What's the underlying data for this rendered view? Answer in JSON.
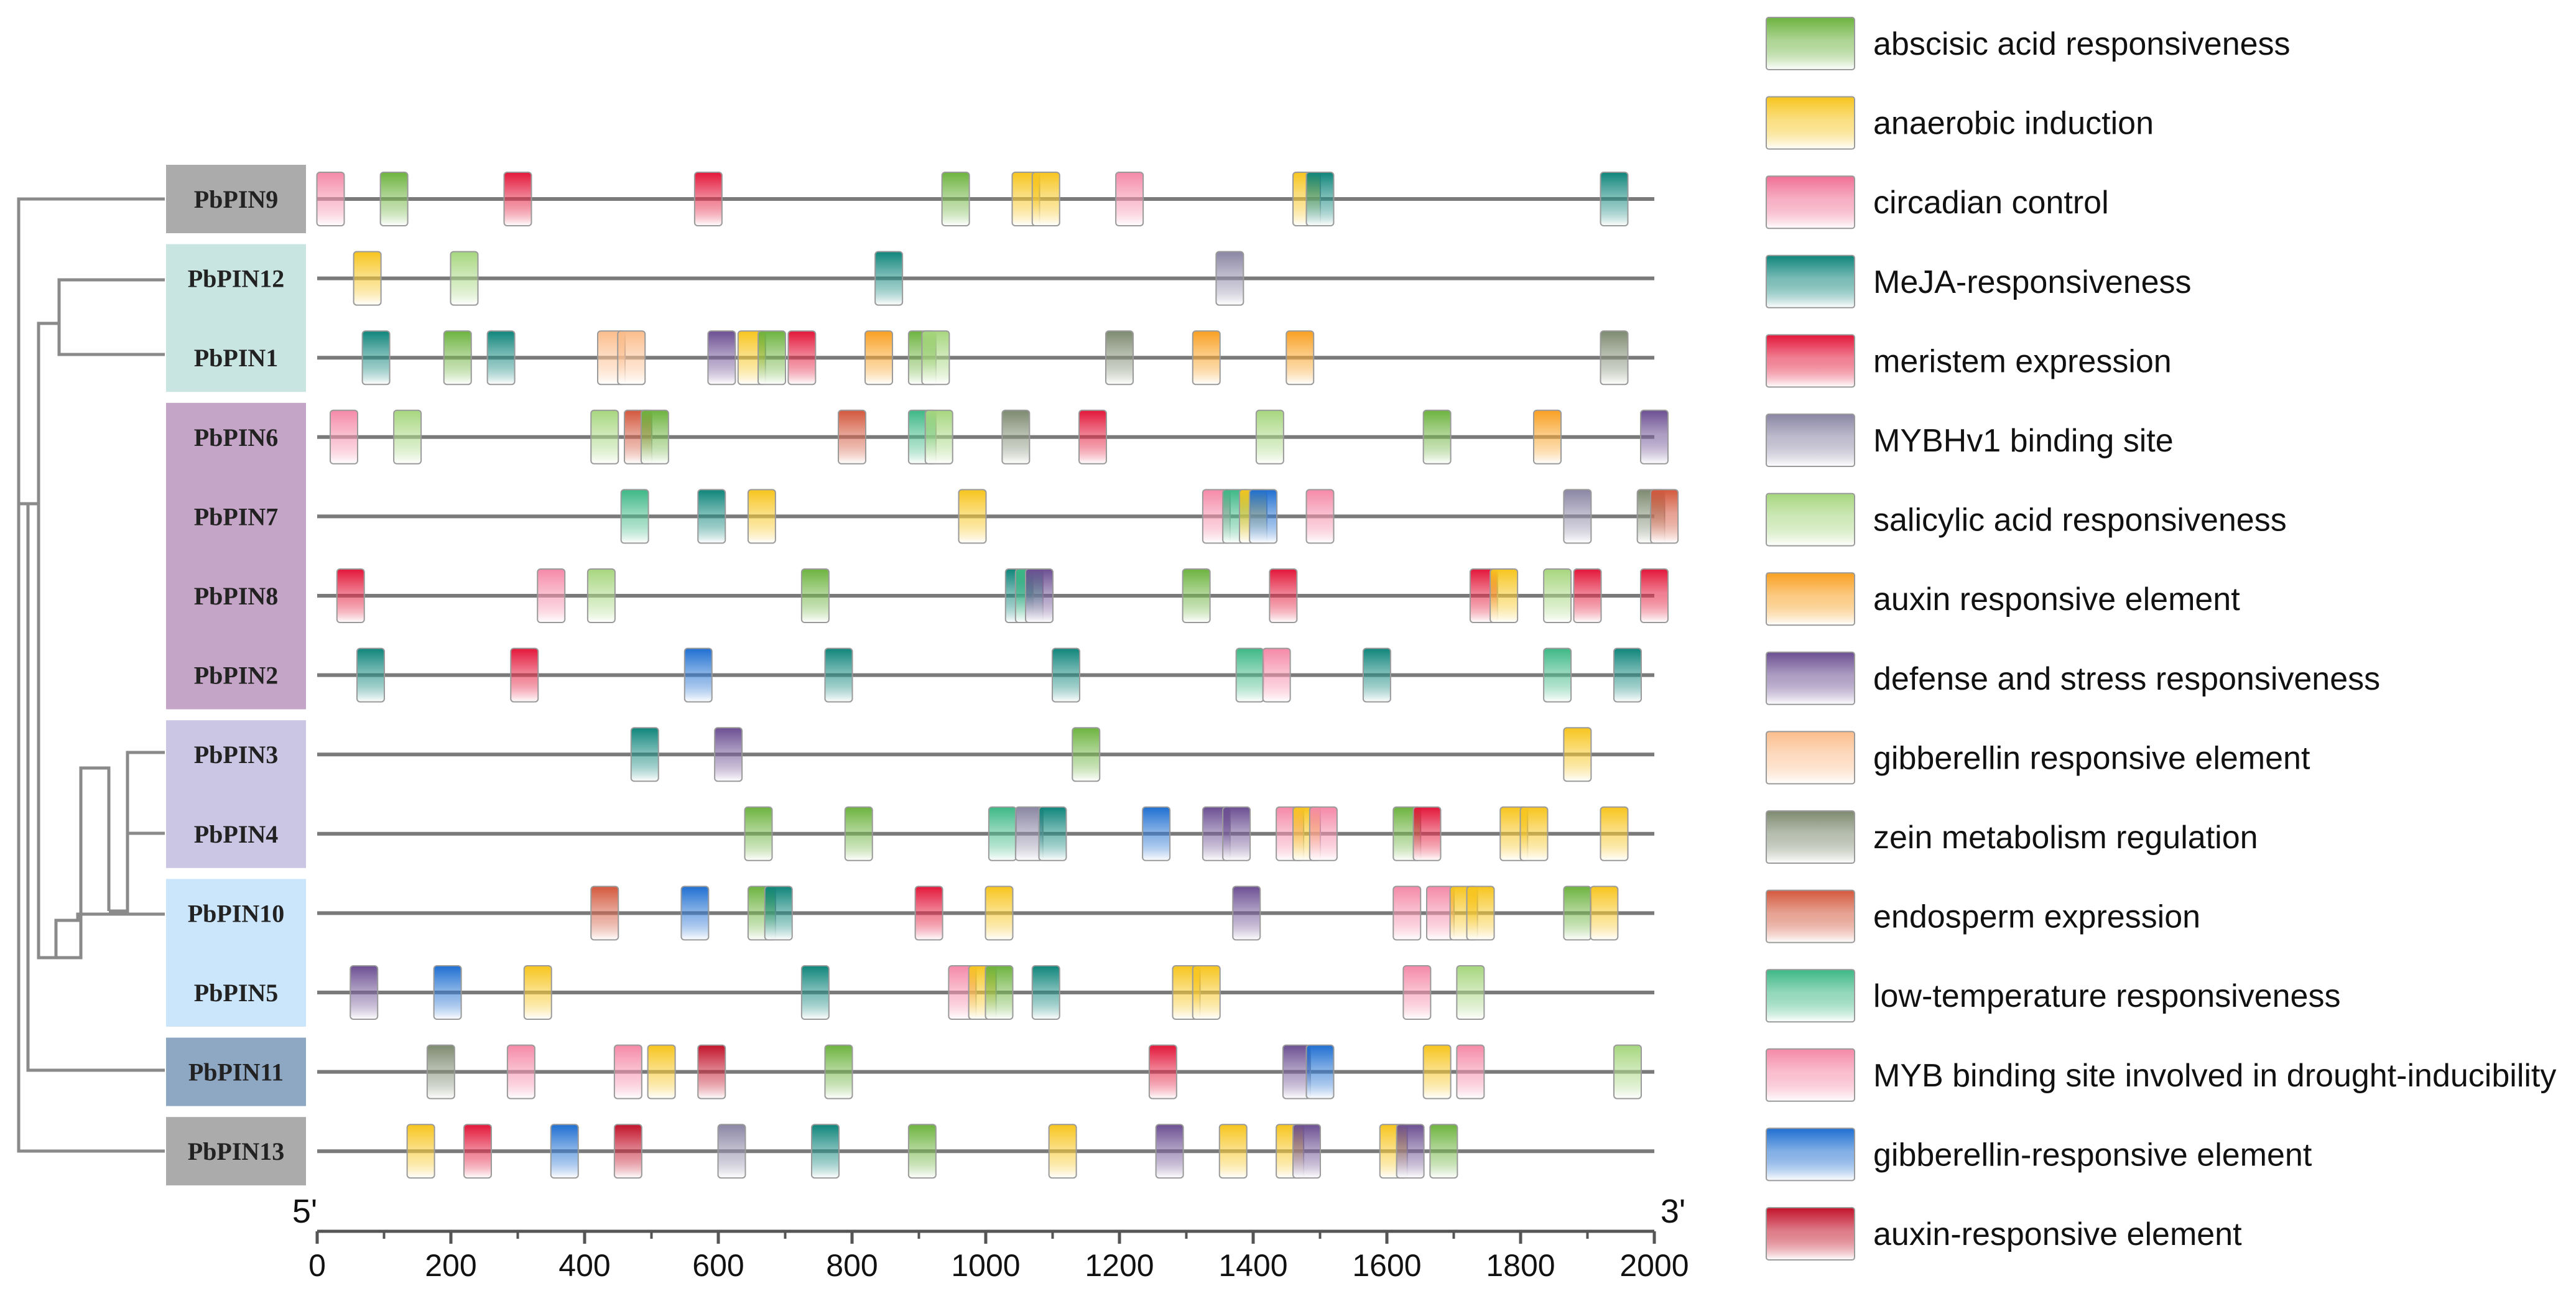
{
  "elements": {
    "abscisic": {
      "label": "abscisic acid responsiveness",
      "color": "#6db33f"
    },
    "anaerobic": {
      "label": "anaerobic induction",
      "color": "#f7c51e"
    },
    "circadian": {
      "label": "circadian control",
      "color": "#f06f95"
    },
    "meja": {
      "label": "MeJA-responsiveness",
      "color": "#0f857b"
    },
    "meristem": {
      "label": "meristem expression",
      "color": "#e3173a"
    },
    "mybhv1": {
      "label": "MYBHv1 binding site",
      "color": "#8a86a4"
    },
    "salicylic": {
      "label": "salicylic acid responsiveness",
      "color": "#a6d67e"
    },
    "auxin": {
      "label": "auxin responsive element",
      "color": "#f9a021"
    },
    "defense": {
      "label": "defense and stress responsiveness",
      "color": "#6c4f92"
    },
    "gibberellin": {
      "label": "gibberellin responsive element",
      "color": "#fcbd8c"
    },
    "zein": {
      "label": "zein metabolism regulation",
      "color": "#7d8a70"
    },
    "endosperm": {
      "label": "endosperm expression",
      "color": "#d3583d"
    },
    "lowtemp": {
      "label": "low-temperature responsiveness",
      "color": "#3db885"
    },
    "myb": {
      "label": "MYB binding site involved in drought-inducibility",
      "color": "#f589a8"
    },
    "gib2": {
      "label": "gibberellin-responsive element",
      "color": "#1f6fd1"
    },
    "auxin2": {
      "label": "auxin-responsive element",
      "color": "#c2132a"
    }
  },
  "legend_order": [
    "abscisic",
    "anaerobic",
    "circadian",
    "meja",
    "meristem",
    "mybhv1",
    "salicylic",
    "auxin",
    "defense",
    "gibberellin",
    "zein",
    "endosperm",
    "lowtemp",
    "myb",
    "gib2",
    "auxin2"
  ],
  "axis": {
    "start_label": "5'",
    "end_label": "3'",
    "min": 0,
    "max": 2000,
    "ticks": [
      0,
      200,
      400,
      600,
      800,
      1000,
      1200,
      1400,
      1600,
      1800,
      2000
    ]
  },
  "groups": [
    {
      "genes": [
        "PbPIN9"
      ],
      "color": "#ababab"
    },
    {
      "genes": [
        "PbPIN12",
        "PbPIN1"
      ],
      "color": "#c8e5e1"
    },
    {
      "genes": [
        "PbPIN6",
        "PbPIN7",
        "PbPIN8",
        "PbPIN2"
      ],
      "color": "#c5a5c7"
    },
    {
      "genes": [
        "PbPIN3",
        "PbPIN4"
      ],
      "color": "#cac6e3"
    },
    {
      "genes": [
        "PbPIN10",
        "PbPIN5"
      ],
      "color": "#cbe5fb"
    },
    {
      "genes": [
        "PbPIN11"
      ],
      "color": "#8ea7c3"
    },
    {
      "genes": [
        "PbPIN13"
      ],
      "color": "#ababab"
    }
  ],
  "chart_data": {
    "type": "promoter-elements",
    "x_range": [
      0,
      2000
    ],
    "genes": [
      {
        "name": "PbPIN9",
        "elements": [
          [
            20,
            "myb"
          ],
          [
            115,
            "abscisic"
          ],
          [
            300,
            "meristem"
          ],
          [
            585,
            "meristem"
          ],
          [
            955,
            "abscisic"
          ],
          [
            1060,
            "anaerobic"
          ],
          [
            1090,
            "anaerobic"
          ],
          [
            1215,
            "myb"
          ],
          [
            1480,
            "anaerobic"
          ],
          [
            1500,
            "meja"
          ],
          [
            1940,
            "meja"
          ]
        ]
      },
      {
        "name": "PbPIN12",
        "elements": [
          [
            75,
            "anaerobic"
          ],
          [
            220,
            "salicylic"
          ],
          [
            855,
            "meja"
          ],
          [
            1365,
            "mybhv1"
          ]
        ]
      },
      {
        "name": "PbPIN1",
        "elements": [
          [
            88,
            "meja"
          ],
          [
            210,
            "abscisic"
          ],
          [
            275,
            "meja"
          ],
          [
            440,
            "gibberellin"
          ],
          [
            470,
            "gibberellin"
          ],
          [
            605,
            "defense"
          ],
          [
            650,
            "anaerobic"
          ],
          [
            680,
            "abscisic"
          ],
          [
            725,
            "meristem"
          ],
          [
            840,
            "auxin"
          ],
          [
            905,
            "abscisic"
          ],
          [
            925,
            "salicylic"
          ],
          [
            1200,
            "zein"
          ],
          [
            1330,
            "auxin"
          ],
          [
            1470,
            "auxin"
          ],
          [
            1940,
            "zein"
          ]
        ]
      },
      {
        "name": "PbPIN6",
        "elements": [
          [
            40,
            "myb"
          ],
          [
            135,
            "salicylic"
          ],
          [
            430,
            "salicylic"
          ],
          [
            480,
            "endosperm"
          ],
          [
            505,
            "abscisic"
          ],
          [
            800,
            "endosperm"
          ],
          [
            905,
            "lowtemp"
          ],
          [
            930,
            "salicylic"
          ],
          [
            1045,
            "zein"
          ],
          [
            1160,
            "meristem"
          ],
          [
            1425,
            "salicylic"
          ],
          [
            1675,
            "abscisic"
          ],
          [
            1840,
            "auxin"
          ],
          [
            2000,
            "defense"
          ]
        ]
      },
      {
        "name": "PbPIN7",
        "elements": [
          [
            475,
            "lowtemp"
          ],
          [
            590,
            "meja"
          ],
          [
            665,
            "anaerobic"
          ],
          [
            980,
            "anaerobic"
          ],
          [
            1345,
            "myb"
          ],
          [
            1375,
            "lowtemp"
          ],
          [
            1400,
            "anaerobic"
          ],
          [
            1415,
            "gib2"
          ],
          [
            1500,
            "myb"
          ],
          [
            1885,
            "mybhv1"
          ],
          [
            1995,
            "zein"
          ],
          [
            2015,
            "endosperm"
          ]
        ]
      },
      {
        "name": "PbPIN8",
        "elements": [
          [
            50,
            "meristem"
          ],
          [
            350,
            "myb"
          ],
          [
            425,
            "salicylic"
          ],
          [
            745,
            "abscisic"
          ],
          [
            1050,
            "meja"
          ],
          [
            1065,
            "lowtemp"
          ],
          [
            1080,
            "defense"
          ],
          [
            1315,
            "abscisic"
          ],
          [
            1445,
            "meristem"
          ],
          [
            1745,
            "meristem"
          ],
          [
            1775,
            "anaerobic"
          ],
          [
            1855,
            "salicylic"
          ],
          [
            1900,
            "meristem"
          ],
          [
            2000,
            "meristem"
          ]
        ]
      },
      {
        "name": "PbPIN2",
        "elements": [
          [
            80,
            "meja"
          ],
          [
            310,
            "meristem"
          ],
          [
            570,
            "gib2"
          ],
          [
            780,
            "meja"
          ],
          [
            1120,
            "meja"
          ],
          [
            1395,
            "lowtemp"
          ],
          [
            1435,
            "myb"
          ],
          [
            1585,
            "meja"
          ],
          [
            1855,
            "lowtemp"
          ],
          [
            1960,
            "meja"
          ]
        ]
      },
      {
        "name": "PbPIN3",
        "elements": [
          [
            490,
            "meja"
          ],
          [
            615,
            "defense"
          ],
          [
            1150,
            "abscisic"
          ],
          [
            1885,
            "anaerobic"
          ]
        ]
      },
      {
        "name": "PbPIN4",
        "elements": [
          [
            660,
            "abscisic"
          ],
          [
            810,
            "abscisic"
          ],
          [
            1025,
            "lowtemp"
          ],
          [
            1065,
            "mybhv1"
          ],
          [
            1100,
            "meja"
          ],
          [
            1255,
            "gib2"
          ],
          [
            1345,
            "defense"
          ],
          [
            1375,
            "defense"
          ],
          [
            1455,
            "myb"
          ],
          [
            1480,
            "anaerobic"
          ],
          [
            1505,
            "myb"
          ],
          [
            1630,
            "abscisic"
          ],
          [
            1660,
            "meristem"
          ],
          [
            1790,
            "anaerobic"
          ],
          [
            1820,
            "anaerobic"
          ],
          [
            1940,
            "anaerobic"
          ]
        ]
      },
      {
        "name": "PbPIN10",
        "elements": [
          [
            430,
            "endosperm"
          ],
          [
            565,
            "gib2"
          ],
          [
            665,
            "abscisic"
          ],
          [
            690,
            "meja"
          ],
          [
            915,
            "meristem"
          ],
          [
            1020,
            "anaerobic"
          ],
          [
            1390,
            "defense"
          ],
          [
            1630,
            "myb"
          ],
          [
            1680,
            "myb"
          ],
          [
            1715,
            "anaerobic"
          ],
          [
            1740,
            "anaerobic"
          ],
          [
            1885,
            "abscisic"
          ],
          [
            1925,
            "anaerobic"
          ]
        ]
      },
      {
        "name": "PbPIN5",
        "elements": [
          [
            70,
            "defense"
          ],
          [
            195,
            "gib2"
          ],
          [
            330,
            "anaerobic"
          ],
          [
            745,
            "meja"
          ],
          [
            965,
            "myb"
          ],
          [
            995,
            "anaerobic"
          ],
          [
            1020,
            "abscisic"
          ],
          [
            1090,
            "meja"
          ],
          [
            1300,
            "anaerobic"
          ],
          [
            1330,
            "anaerobic"
          ],
          [
            1645,
            "myb"
          ],
          [
            1725,
            "salicylic"
          ]
        ]
      },
      {
        "name": "PbPIN11",
        "elements": [
          [
            185,
            "zein"
          ],
          [
            305,
            "myb"
          ],
          [
            465,
            "myb"
          ],
          [
            515,
            "anaerobic"
          ],
          [
            590,
            "auxin2"
          ],
          [
            780,
            "abscisic"
          ],
          [
            1265,
            "meristem"
          ],
          [
            1465,
            "defense"
          ],
          [
            1500,
            "gib2"
          ],
          [
            1675,
            "anaerobic"
          ],
          [
            1725,
            "myb"
          ],
          [
            1960,
            "salicylic"
          ]
        ]
      },
      {
        "name": "PbPIN13",
        "elements": [
          [
            155,
            "anaerobic"
          ],
          [
            240,
            "meristem"
          ],
          [
            370,
            "gib2"
          ],
          [
            465,
            "auxin2"
          ],
          [
            620,
            "mybhv1"
          ],
          [
            760,
            "meja"
          ],
          [
            905,
            "abscisic"
          ],
          [
            1115,
            "anaerobic"
          ],
          [
            1275,
            "defense"
          ],
          [
            1370,
            "anaerobic"
          ],
          [
            1455,
            "anaerobic"
          ],
          [
            1480,
            "defense"
          ],
          [
            1610,
            "anaerobic"
          ],
          [
            1635,
            "defense"
          ],
          [
            1685,
            "abscisic"
          ]
        ]
      }
    ]
  }
}
